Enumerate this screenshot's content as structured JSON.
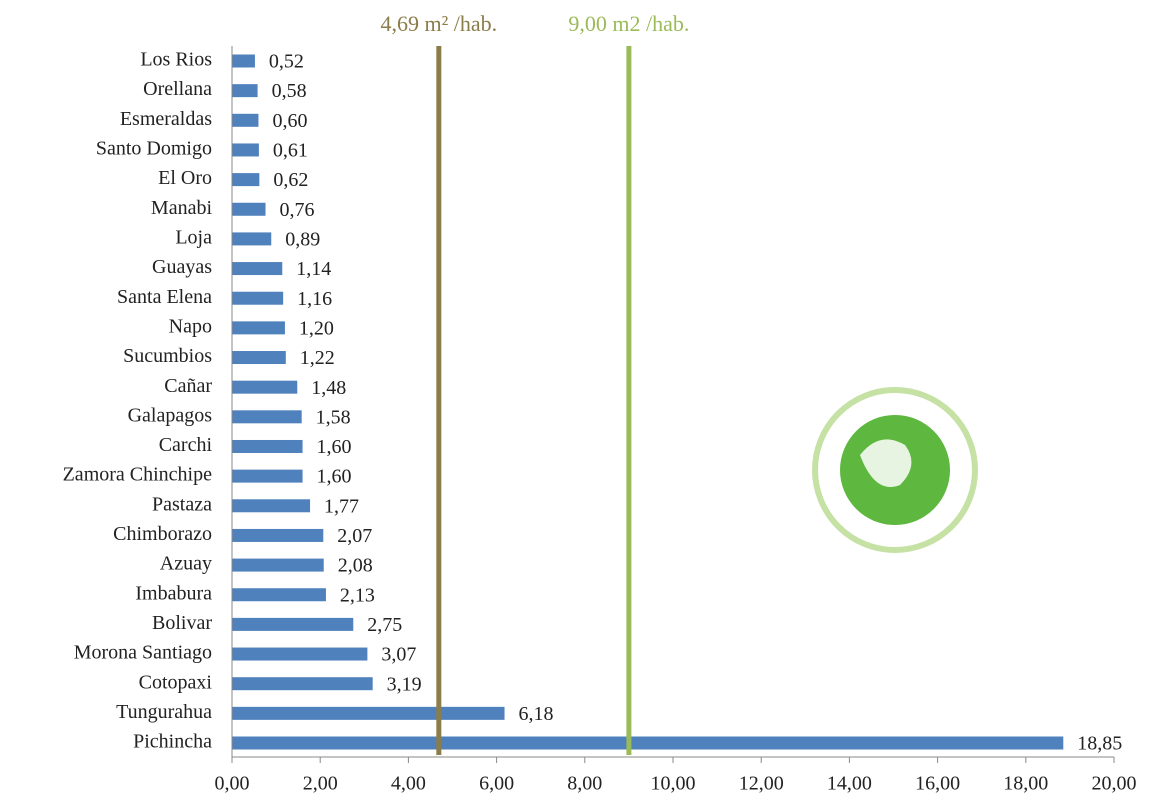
{
  "chart_data": {
    "type": "bar",
    "orientation": "horizontal",
    "categories": [
      "Los Rios",
      "Orellana",
      "Esmeraldas",
      "Santo Domigo",
      "El Oro",
      "Manabi",
      "Loja",
      "Guayas",
      "Santa Elena",
      "Napo",
      "Sucumbios",
      "Cañar",
      "Galapagos",
      "Carchi",
      "Zamora Chinchipe",
      "Pastaza",
      "Chimborazo",
      "Azuay",
      "Imbabura",
      "Bolivar",
      "Morona Santiago",
      "Cotopaxi",
      "Tungurahua",
      "Pichincha"
    ],
    "values": [
      0.52,
      0.58,
      0.6,
      0.61,
      0.62,
      0.76,
      0.89,
      1.14,
      1.16,
      1.2,
      1.22,
      1.48,
      1.58,
      1.6,
      1.6,
      1.77,
      2.07,
      2.08,
      2.13,
      2.75,
      3.07,
      3.19,
      6.18,
      18.85
    ],
    "value_labels": [
      "0,52",
      "0,58",
      "0,60",
      "0,61",
      "0,62",
      "0,76",
      "0,89",
      "1,14",
      "1,16",
      "1,20",
      "1,22",
      "1,48",
      "1,58",
      "1,60",
      "1,60",
      "1,77",
      "2,07",
      "2,08",
      "2,13",
      "2,75",
      "3,07",
      "3,19",
      "6,18",
      "18,85"
    ],
    "color": "#4f81bd",
    "xlim": [
      0,
      20
    ],
    "xticks": [
      {
        "value": 0,
        "label": "0,00"
      },
      {
        "value": 2,
        "label": "2,00"
      },
      {
        "value": 4,
        "label": "4,00"
      },
      {
        "value": 6,
        "label": "6,00"
      },
      {
        "value": 8,
        "label": "8,00"
      },
      {
        "value": 10,
        "label": "10,00"
      },
      {
        "value": 12,
        "label": "12,00"
      },
      {
        "value": 14,
        "label": "14,00"
      },
      {
        "value": 16,
        "label": "16,00"
      },
      {
        "value": 18,
        "label": "18,00"
      },
      {
        "value": 20,
        "label": "20,00"
      }
    ],
    "reference_lines": [
      {
        "value": 4.69,
        "label": "4,69 m² /hab.",
        "color": "#8b7d4a"
      },
      {
        "value": 9.0,
        "label": "9,00 m2 /hab.",
        "color": "#9bbb59"
      }
    ],
    "grid": false
  }
}
